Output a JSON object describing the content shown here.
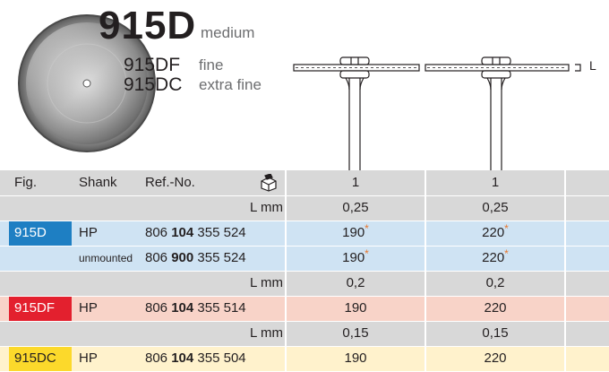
{
  "header": {
    "main_code": "915D",
    "main_grade": "medium",
    "variants": [
      {
        "code": "915DF",
        "grade": "fine"
      },
      {
        "code": "915DC",
        "grade": "extra fine"
      }
    ],
    "dimension_label": "L"
  },
  "table": {
    "headers": {
      "fig": "Fig.",
      "shank": "Shank",
      "ref": "Ref.-No.",
      "pack_icon": "package-icon",
      "fig1": "1",
      "fig2": "1"
    },
    "rows": [
      {
        "tag": "",
        "shank": "",
        "ref_pre": "",
        "ref_bold": "",
        "ref_post": "L mm",
        "v1": "0,25",
        "v2": "0,25",
        "star1": "",
        "star2": ""
      },
      {
        "tag": "915D",
        "shank": "HP",
        "ref_pre": "806 ",
        "ref_bold": "104",
        "ref_post": " 355 524",
        "v1": "190",
        "v2": "220",
        "star1": "*",
        "star2": "*"
      },
      {
        "tag": "",
        "shank": "unmounted",
        "ref_pre": "806 ",
        "ref_bold": "900",
        "ref_post": " 355 524",
        "v1": "190",
        "v2": "220",
        "star1": "*",
        "star2": "*"
      },
      {
        "tag": "",
        "shank": "",
        "ref_pre": "",
        "ref_bold": "",
        "ref_post": "L mm",
        "v1": "0,2",
        "v2": "0,2",
        "star1": "",
        "star2": ""
      },
      {
        "tag": "915DF",
        "shank": "HP",
        "ref_pre": "806 ",
        "ref_bold": "104",
        "ref_post": " 355 514",
        "v1": "190",
        "v2": "220",
        "star1": "",
        "star2": ""
      },
      {
        "tag": "",
        "shank": "",
        "ref_pre": "",
        "ref_bold": "",
        "ref_post": "L mm",
        "v1": "0,15",
        "v2": "0,15",
        "star1": "",
        "star2": ""
      },
      {
        "tag": "915DC",
        "shank": "HP",
        "ref_pre": "806 ",
        "ref_bold": "104",
        "ref_post": " 355 504",
        "v1": "190",
        "v2": "220",
        "star1": "",
        "star2": ""
      }
    ]
  },
  "colors": {
    "tag_915D": "#1e7fc3",
    "tag_915DF": "#e3202e",
    "tag_915DC": "#fcd92b",
    "star": "#e8772e"
  }
}
